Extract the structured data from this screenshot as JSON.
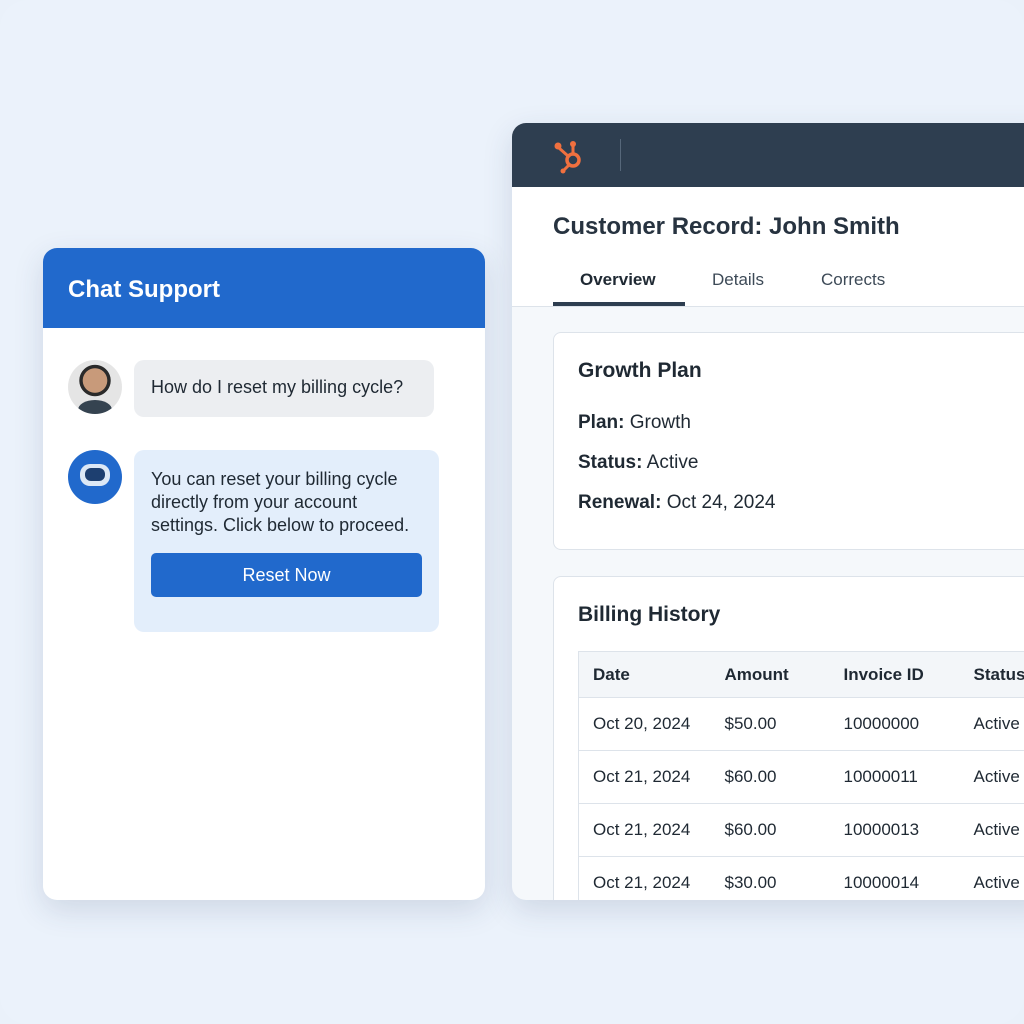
{
  "chat": {
    "title": "Chat Support",
    "messages": [
      {
        "sender": "user",
        "text": "How do I reset my billing cycle?"
      },
      {
        "sender": "bot",
        "text": "You can reset your billing cycle directly from your account settings. Click below to proceed."
      }
    ],
    "button_label": "Reset Now"
  },
  "crm": {
    "logo": "hubspot-logo",
    "accent": "#f0703f",
    "title": "Customer Record: John Smith",
    "tabs": [
      {
        "label": "Overview",
        "active": true
      },
      {
        "label": "Details"
      },
      {
        "label": "Corrects"
      }
    ],
    "plan_card": {
      "title": "Growth Plan",
      "fields": [
        {
          "label": "Plan:",
          "value": "Growth"
        },
        {
          "label": "Status:",
          "value": "Active"
        },
        {
          "label": "Renewal:",
          "value": "Oct 24, 2024"
        }
      ]
    },
    "billing": {
      "title": "Billing History",
      "columns": [
        "Date",
        "Amount",
        "Invoice ID",
        "Status"
      ],
      "rows": [
        [
          "Oct 20, 2024",
          "$50.00",
          "10000000",
          "Active"
        ],
        [
          "Oct 21, 2024",
          "$60.00",
          "10000011",
          "Active"
        ],
        [
          "Oct 21, 2024",
          "$60.00",
          "10000013",
          "Active"
        ],
        [
          "Oct 21, 2024",
          "$30.00",
          "10000014",
          "Active"
        ]
      ]
    }
  }
}
